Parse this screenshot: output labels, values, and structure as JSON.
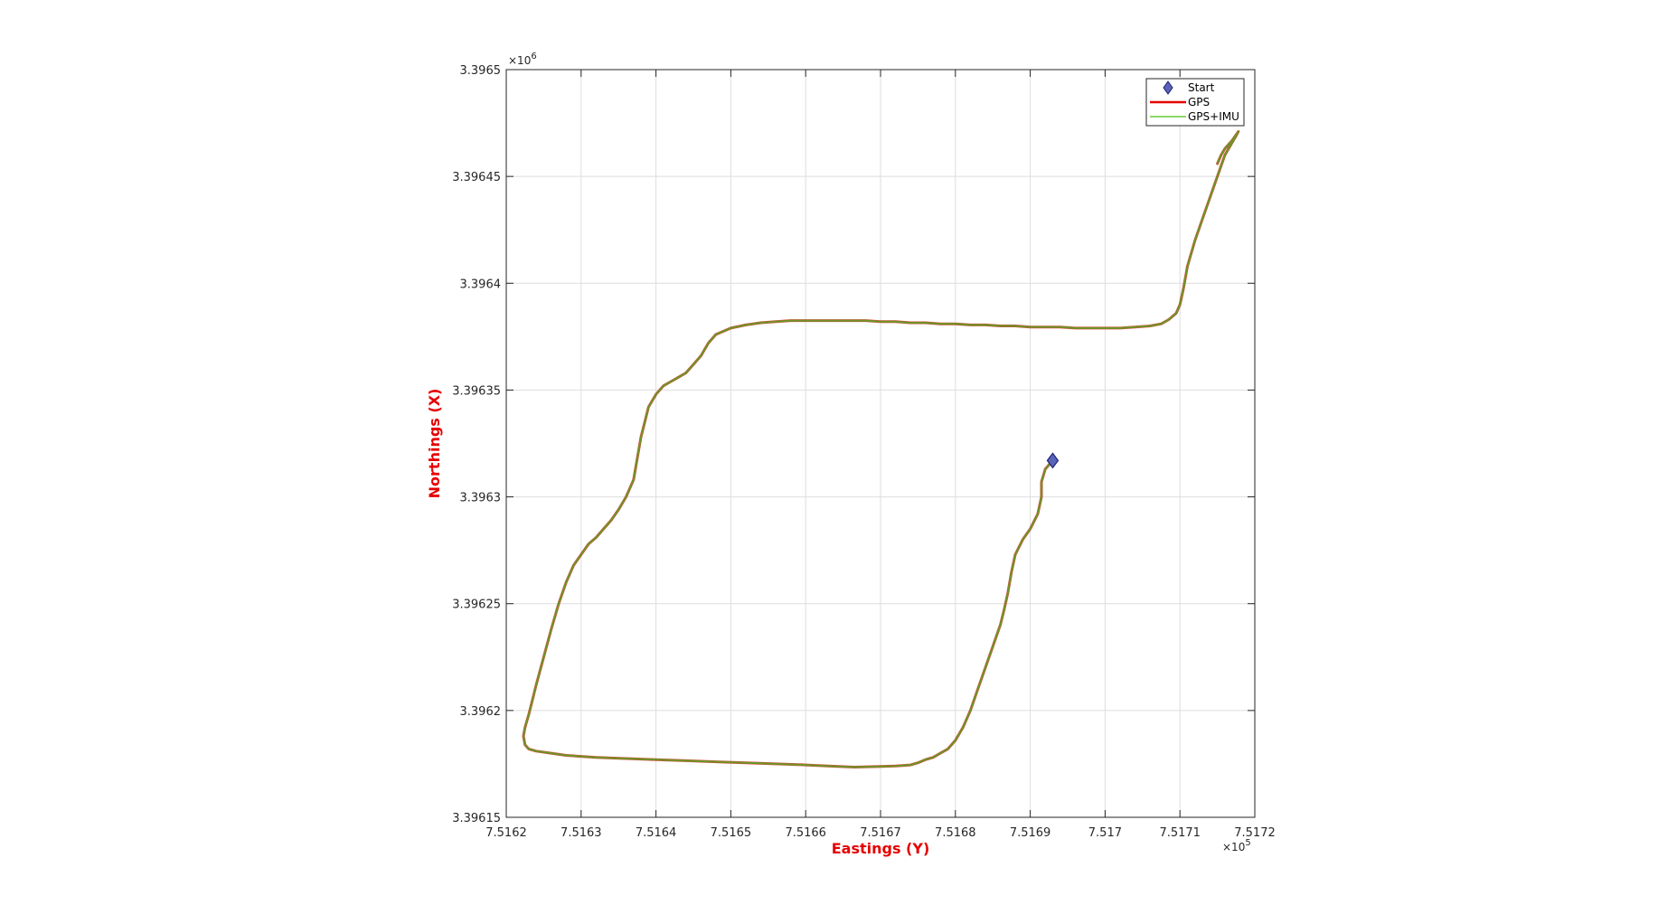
{
  "chart_data": {
    "type": "line",
    "xlabel": "Eastings (Y)",
    "ylabel": "Northings (X)",
    "label_color": "#e60000",
    "x_exponent": "×10",
    "x_exponent_power": "5",
    "y_exponent": "×10",
    "y_exponent_power": "6",
    "xlim": [
      751620,
      751720
    ],
    "ylim": [
      3396150,
      3396500
    ],
    "xticks": [
      751620,
      751630,
      751640,
      751650,
      751660,
      751670,
      751680,
      751690,
      751700,
      751710,
      751720
    ],
    "xtick_labels": [
      "7.5162",
      "7.5163",
      "7.5164",
      "7.5165",
      "7.5166",
      "7.5167",
      "7.5168",
      "7.5169",
      "7.517",
      "7.5171",
      "7.5172"
    ],
    "yticks": [
      3396150,
      3396200,
      3396250,
      3396300,
      3396350,
      3396400,
      3396450,
      3396500
    ],
    "ytick_labels": [
      "3.39615",
      "3.3962",
      "3.39625",
      "3.3963",
      "3.39635",
      "3.3964",
      "3.39645",
      "3.3965"
    ],
    "grid": true,
    "legend_position": "top-right",
    "series": [
      {
        "name": "Start",
        "marker": "diamond",
        "color": "#5b63b6",
        "x": [
          751693.0
        ],
        "y": [
          3396317.0
        ]
      },
      {
        "name": "GPS",
        "color": "#e60000",
        "x": [
          751693.0,
          751692.0,
          751691.5,
          751691.5,
          751691.0,
          751690.0,
          751689.0,
          751688.0,
          751687.5,
          751687.0,
          751686.5,
          751686.0,
          751685.0,
          751684.0,
          751683.0,
          751682.0,
          751681.0,
          751680.0,
          751679.0,
          751678.0,
          751677.0,
          751676.5,
          751676.0,
          751675.0,
          751674.0,
          751672.0,
          751670.0,
          751666.5,
          751663.0,
          751660.0,
          751656.0,
          751652.0,
          751648.0,
          751644.0,
          751640.0,
          751636.0,
          751632.0,
          751628.0,
          751626.0,
          751624.0,
          751623.0,
          751622.5,
          751622.3,
          751622.5,
          751623.0,
          751623.5,
          751624.0,
          751625.0,
          751626.0,
          751627.0,
          751628.0,
          751629.0,
          751630.0,
          751631.0,
          751632.0,
          751633.0,
          751634.0,
          751635.0,
          751636.0,
          751637.0,
          751637.5,
          751638.0,
          751638.5,
          751639.0,
          751640.0,
          751641.0,
          751642.0,
          751643.0,
          751644.0,
          751645.0,
          751646.0,
          751647.0,
          751648.0,
          751650.0,
          751652.0,
          751654.0,
          751656.0,
          751658.0,
          751660.0,
          751662.0,
          751664.0,
          751666.0,
          751668.0,
          751670.0,
          751672.0,
          751674.0,
          751676.0,
          751678.0,
          751680.0,
          751682.0,
          751684.0,
          751686.0,
          751688.0,
          751690.0,
          751692.0,
          751694.0,
          751696.0,
          751698.0,
          751700.0,
          751702.0,
          751704.0,
          751706.0,
          751707.5,
          751708.5,
          751709.5,
          751710.0,
          751710.5,
          751711.0,
          751712.0,
          751713.0,
          751714.0,
          751715.0,
          751716.0,
          751717.0,
          751717.5,
          751717.8,
          751717.0,
          751716.0,
          751715.5,
          751715.0
        ],
        "y": [
          3396317.0,
          3396313.0,
          3396307.0,
          3396300.0,
          3396292.0,
          3396285.0,
          3396280.0,
          3396273.0,
          3396265.0,
          3396255.0,
          3396247.0,
          3396240.0,
          3396230.0,
          3396220.0,
          3396210.0,
          3396200.0,
          3396192.0,
          3396186.0,
          3396182.0,
          3396180.0,
          3396178.0,
          3396177.5,
          3396177.0,
          3396175.5,
          3396174.5,
          3396174.0,
          3396173.8,
          3396173.5,
          3396174.0,
          3396174.5,
          3396175.0,
          3396175.5,
          3396176.0,
          3396176.5,
          3396177.0,
          3396177.5,
          3396178.0,
          3396179.0,
          3396180.0,
          3396181.0,
          3396182.0,
          3396184.0,
          3396188.0,
          3396192.0,
          3396198.0,
          3396205.0,
          3396212.0,
          3396225.0,
          3396238.0,
          3396250.0,
          3396260.0,
          3396268.0,
          3396273.0,
          3396278.0,
          3396281.0,
          3396285.0,
          3396289.0,
          3396294.0,
          3396300.0,
          3396308.0,
          3396318.0,
          3396328.0,
          3396335.0,
          3396342.0,
          3396348.0,
          3396352.0,
          3396354.0,
          3396356.0,
          3396358.0,
          3396362.0,
          3396366.0,
          3396372.0,
          3396376.0,
          3396379.0,
          3396380.5,
          3396381.5,
          3396382.0,
          3396382.5,
          3396382.5,
          3396382.5,
          3396382.5,
          3396382.5,
          3396382.5,
          3396382.0,
          3396382.0,
          3396381.5,
          3396381.5,
          3396381.0,
          3396381.0,
          3396380.5,
          3396380.5,
          3396380.0,
          3396380.0,
          3396379.5,
          3396379.5,
          3396379.5,
          3396379.0,
          3396379.0,
          3396379.0,
          3396379.0,
          3396379.5,
          3396380.0,
          3396381.0,
          3396383.0,
          3396386.0,
          3396390.0,
          3396398.0,
          3396408.0,
          3396420.0,
          3396430.0,
          3396440.0,
          3396450.0,
          3396460.0,
          3396466.0,
          3396469.0,
          3396471.0,
          3396467.0,
          3396463.0,
          3396460.0,
          3396456.0
        ]
      },
      {
        "name": "GPS+IMU",
        "color": "#66cc33",
        "x": [
          751693.0,
          751692.0,
          751691.5,
          751691.5,
          751691.0,
          751690.0,
          751689.0,
          751688.0,
          751687.5,
          751687.0,
          751686.5,
          751686.0,
          751685.0,
          751684.0,
          751683.0,
          751682.0,
          751681.0,
          751680.0,
          751679.0,
          751678.0,
          751677.0,
          751676.5,
          751676.0,
          751675.0,
          751674.0,
          751672.0,
          751670.0,
          751666.5,
          751663.0,
          751660.0,
          751656.0,
          751652.0,
          751648.0,
          751644.0,
          751640.0,
          751636.0,
          751632.0,
          751628.0,
          751626.0,
          751624.0,
          751623.0,
          751622.5,
          751622.3,
          751622.5,
          751623.0,
          751623.5,
          751624.0,
          751625.0,
          751626.0,
          751627.0,
          751628.0,
          751629.0,
          751630.0,
          751631.0,
          751632.0,
          751633.0,
          751634.0,
          751635.0,
          751636.0,
          751637.0,
          751637.5,
          751638.0,
          751638.5,
          751639.0,
          751640.0,
          751641.0,
          751642.0,
          751643.0,
          751644.0,
          751645.0,
          751646.0,
          751647.0,
          751648.0,
          751650.0,
          751652.0,
          751654.0,
          751656.0,
          751658.0,
          751660.0,
          751662.0,
          751664.0,
          751666.0,
          751668.0,
          751670.0,
          751672.0,
          751674.0,
          751676.0,
          751678.0,
          751680.0,
          751682.0,
          751684.0,
          751686.0,
          751688.0,
          751690.0,
          751692.0,
          751694.0,
          751696.0,
          751698.0,
          751700.0,
          751702.0,
          751704.0,
          751706.0,
          751707.5,
          751708.5,
          751709.5,
          751710.0,
          751710.5,
          751711.0,
          751712.0,
          751713.0,
          751714.0,
          751715.0,
          751716.0,
          751717.0,
          751717.5,
          751717.8,
          751717.0,
          751716.0,
          751715.5,
          751715.0
        ],
        "y": [
          3396317.0,
          3396313.0,
          3396307.0,
          3396300.0,
          3396292.0,
          3396285.0,
          3396280.0,
          3396273.0,
          3396265.0,
          3396255.0,
          3396247.0,
          3396240.0,
          3396230.0,
          3396220.0,
          3396210.0,
          3396200.0,
          3396192.0,
          3396186.0,
          3396182.0,
          3396180.0,
          3396178.0,
          3396177.5,
          3396177.0,
          3396175.5,
          3396174.5,
          3396174.0,
          3396173.8,
          3396173.5,
          3396174.0,
          3396174.5,
          3396175.0,
          3396175.5,
          3396176.0,
          3396176.5,
          3396177.0,
          3396177.5,
          3396178.0,
          3396179.0,
          3396180.0,
          3396181.0,
          3396182.0,
          3396184.0,
          3396188.0,
          3396192.0,
          3396198.0,
          3396205.0,
          3396212.0,
          3396225.0,
          3396238.0,
          3396250.0,
          3396260.0,
          3396268.0,
          3396273.0,
          3396278.0,
          3396281.0,
          3396285.0,
          3396289.0,
          3396294.0,
          3396300.0,
          3396308.0,
          3396318.0,
          3396328.0,
          3396335.0,
          3396342.0,
          3396348.0,
          3396352.0,
          3396354.0,
          3396356.0,
          3396358.0,
          3396362.0,
          3396366.0,
          3396372.0,
          3396376.0,
          3396379.0,
          3396380.5,
          3396381.5,
          3396382.0,
          3396382.5,
          3396382.5,
          3396382.5,
          3396382.5,
          3396382.5,
          3396382.5,
          3396382.0,
          3396382.0,
          3396381.5,
          3396381.5,
          3396381.0,
          3396381.0,
          3396380.5,
          3396380.5,
          3396380.0,
          3396380.0,
          3396379.5,
          3396379.5,
          3396379.5,
          3396379.0,
          3396379.0,
          3396379.0,
          3396379.0,
          3396379.5,
          3396380.0,
          3396381.0,
          3396383.0,
          3396386.0,
          3396390.0,
          3396398.0,
          3396408.0,
          3396420.0,
          3396430.0,
          3396440.0,
          3396450.0,
          3396460.0,
          3396466.0,
          3396469.0,
          3396471.0,
          3396467.0,
          3396463.0,
          3396460.0,
          3396456.0
        ]
      }
    ]
  }
}
